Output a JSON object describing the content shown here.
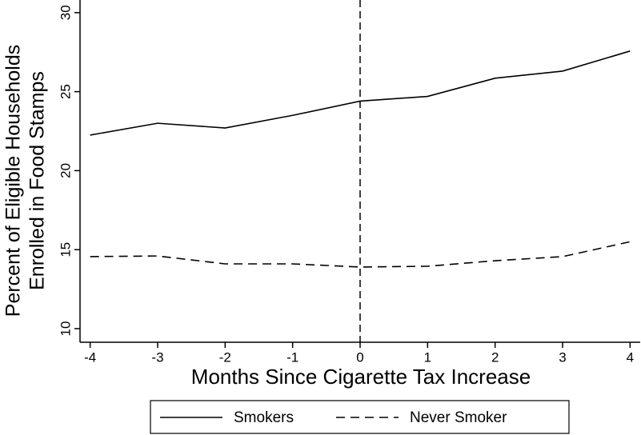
{
  "chart_data": {
    "type": "line",
    "ylabel": [
      "Percent of Eligible Households",
      "Enrolled in Food Stamps"
    ],
    "xlabel": "Months Since Cigarette Tax Increase",
    "x": [
      -4,
      -3,
      -2,
      -1,
      0,
      1,
      2,
      3,
      4
    ],
    "series": [
      {
        "name": "Smokers",
        "color": "#000000",
        "dash": "solid",
        "values": [
          22.25,
          23.0,
          22.7,
          23.5,
          24.4,
          24.7,
          25.85,
          26.3,
          27.57
        ]
      },
      {
        "name": "Never Smoker",
        "color": "#000000",
        "dash": "dashed",
        "values": [
          14.56,
          14.6,
          14.1,
          14.1,
          13.9,
          13.95,
          14.3,
          14.56,
          15.5
        ]
      }
    ],
    "xlim": [
      -4.15,
      4.15
    ],
    "xticks": [
      -4,
      -3,
      -2,
      -1,
      0,
      1,
      2,
      3,
      4
    ],
    "ylim": [
      9.14,
      30.8
    ],
    "yticks": [
      10,
      15,
      20,
      25,
      30
    ],
    "vline": 0,
    "legend": "bottom",
    "grid": false
  }
}
